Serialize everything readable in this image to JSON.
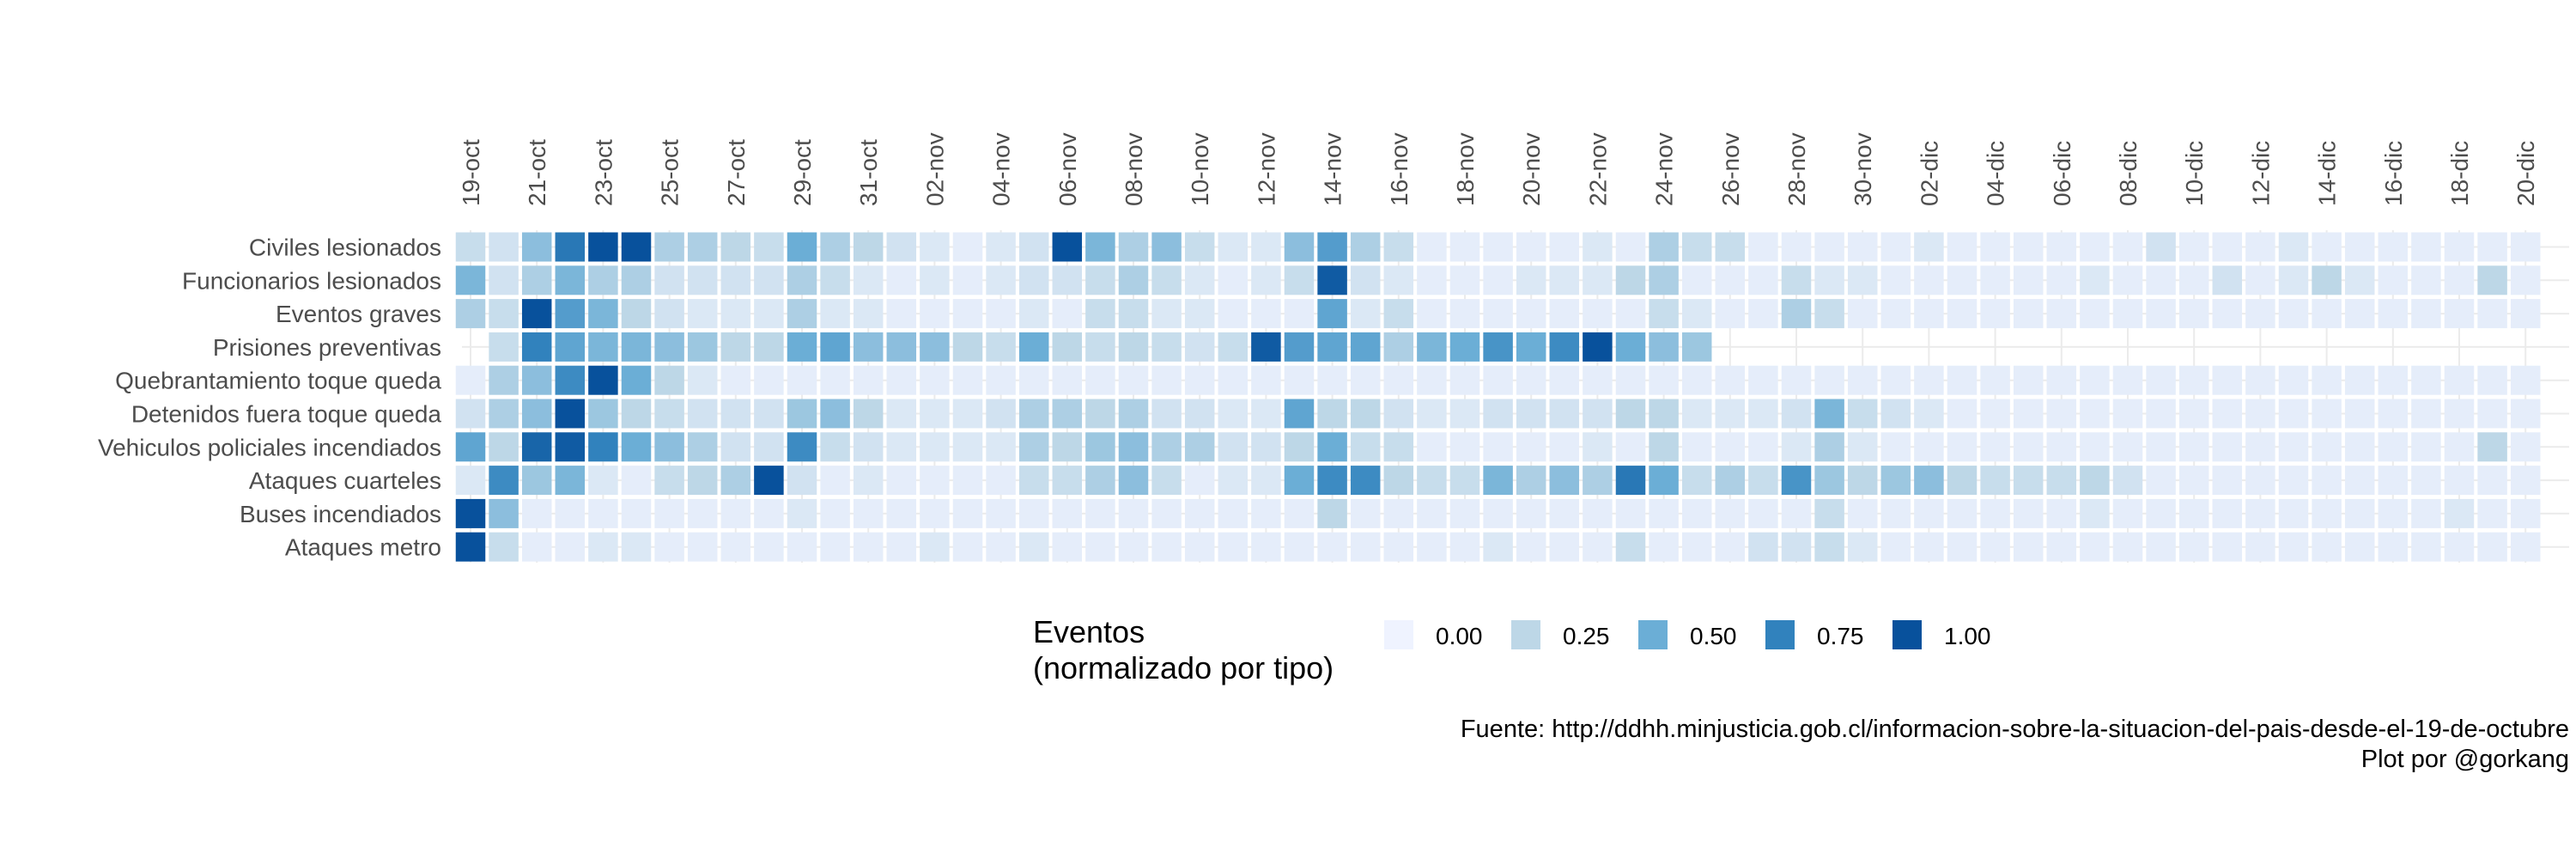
{
  "chart_data": {
    "type": "heatmap",
    "title": "",
    "xlabel": "",
    "ylabel": "",
    "x_tick_labels": [
      "19-oct",
      "21-oct",
      "23-oct",
      "25-oct",
      "27-oct",
      "29-oct",
      "31-oct",
      "02-nov",
      "04-nov",
      "06-nov",
      "08-nov",
      "10-nov",
      "12-nov",
      "14-nov",
      "16-nov",
      "18-nov",
      "20-nov",
      "22-nov",
      "24-nov",
      "26-nov",
      "28-nov",
      "30-nov",
      "02-dic",
      "04-dic",
      "06-dic",
      "08-dic",
      "10-dic",
      "12-dic",
      "14-dic",
      "16-dic",
      "18-dic",
      "20-dic"
    ],
    "n_days": 63,
    "rows": [
      "Civiles lesionados",
      "Funcionarios lesionados",
      "Eventos graves",
      "Prisiones preventivas",
      "Quebrantamiento toque queda",
      "Detenidos fuera toque queda",
      "Vehiculos policiales incendiados",
      "Ataques cuarteles",
      "Buses incendiados",
      "Ataques metro"
    ],
    "values": [
      [
        0.2,
        0.15,
        0.4,
        0.8,
        1.0,
        1.0,
        0.3,
        0.3,
        0.25,
        0.2,
        0.5,
        0.3,
        0.25,
        0.15,
        0.1,
        0.05,
        0.1,
        0.15,
        1.0,
        0.45,
        0.3,
        0.4,
        0.2,
        0.1,
        0.1,
        0.4,
        0.6,
        0.3,
        0.2,
        0.05,
        0.05,
        0.05,
        0.05,
        0.05,
        0.1,
        0.05,
        0.3,
        0.2,
        0.2,
        0.05,
        0.05,
        0.05,
        0.05,
        0.05,
        0.1,
        0.05,
        0.05,
        0.05,
        0.05,
        0.05,
        0.05,
        0.15,
        0.05,
        0.05,
        0.05,
        0.1,
        0.05,
        0.05,
        0.05,
        0.05,
        0.05,
        0.05,
        0.05
      ],
      [
        0.45,
        0.15,
        0.3,
        0.45,
        0.3,
        0.3,
        0.15,
        0.15,
        0.15,
        0.15,
        0.3,
        0.2,
        0.1,
        0.05,
        0.1,
        0.05,
        0.1,
        0.15,
        0.15,
        0.2,
        0.3,
        0.2,
        0.1,
        0.05,
        0.1,
        0.2,
        0.95,
        0.15,
        0.1,
        0.05,
        0.05,
        0.05,
        0.1,
        0.1,
        0.1,
        0.25,
        0.3,
        0.05,
        0.05,
        0.05,
        0.2,
        0.1,
        0.1,
        0.05,
        0.05,
        0.05,
        0.05,
        0.05,
        0.05,
        0.1,
        0.05,
        0.05,
        0.05,
        0.15,
        0.05,
        0.1,
        0.25,
        0.1,
        0.05,
        0.05,
        0.05,
        0.25,
        0.05
      ],
      [
        0.3,
        0.2,
        1.0,
        0.6,
        0.45,
        0.25,
        0.15,
        0.1,
        0.1,
        0.1,
        0.3,
        0.1,
        0.1,
        0.05,
        0.05,
        0.05,
        0.05,
        0.1,
        0.05,
        0.2,
        0.2,
        0.1,
        0.1,
        0.05,
        0.05,
        0.05,
        0.55,
        0.1,
        0.2,
        0.05,
        0.05,
        0.05,
        0.05,
        0.05,
        0.05,
        0.05,
        0.2,
        0.1,
        0.05,
        0.05,
        0.3,
        0.2,
        0.05,
        0.05,
        0.05,
        0.05,
        0.05,
        0.05,
        0.05,
        0.05,
        0.05,
        0.05,
        0.05,
        0.05,
        0.05,
        0.05,
        0.05,
        0.05,
        0.05,
        0.05,
        0.05,
        0.05,
        0.05
      ],
      [
        null,
        0.2,
        0.75,
        0.55,
        0.45,
        0.45,
        0.4,
        0.35,
        0.25,
        0.25,
        0.5,
        0.55,
        0.4,
        0.4,
        0.4,
        0.25,
        0.2,
        0.5,
        0.25,
        0.2,
        0.25,
        0.2,
        0.15,
        0.2,
        0.95,
        0.6,
        0.55,
        0.55,
        0.3,
        0.45,
        0.5,
        0.65,
        0.5,
        0.7,
        1.0,
        0.5,
        0.4,
        0.35,
        null,
        null,
        null,
        null,
        null,
        null,
        null,
        null,
        null,
        null,
        null,
        null,
        null,
        null,
        null,
        null,
        null,
        null,
        null,
        null,
        null,
        null,
        null,
        null,
        null
      ],
      [
        0.05,
        0.3,
        0.4,
        0.7,
        1.0,
        0.5,
        0.25,
        0.1,
        0.05,
        0.05,
        0.05,
        0.05,
        0.05,
        0.05,
        0.05,
        0.05,
        0.05,
        0.05,
        0.05,
        0.05,
        0.05,
        0.05,
        0.05,
        0.05,
        0.05,
        0.05,
        0.05,
        0.05,
        0.05,
        0.05,
        0.05,
        0.05,
        0.05,
        0.05,
        0.05,
        0.05,
        0.05,
        0.05,
        0.05,
        0.05,
        0.05,
        0.05,
        0.05,
        0.05,
        0.05,
        0.05,
        0.05,
        0.05,
        0.05,
        0.05,
        0.05,
        0.05,
        0.05,
        0.05,
        0.05,
        0.05,
        0.05,
        0.05,
        0.05,
        0.05,
        0.05,
        0.05,
        0.05
      ],
      [
        0.15,
        0.3,
        0.4,
        1.0,
        0.35,
        0.25,
        0.2,
        0.15,
        0.15,
        0.15,
        0.35,
        0.4,
        0.25,
        0.1,
        0.1,
        0.1,
        0.15,
        0.3,
        0.3,
        0.25,
        0.3,
        0.15,
        0.15,
        0.1,
        0.1,
        0.55,
        0.25,
        0.25,
        0.15,
        0.1,
        0.1,
        0.15,
        0.15,
        0.15,
        0.15,
        0.25,
        0.25,
        0.1,
        0.1,
        0.1,
        0.15,
        0.45,
        0.2,
        0.15,
        0.1,
        0.05,
        0.05,
        0.05,
        0.05,
        0.05,
        0.05,
        0.05,
        0.05,
        0.05,
        0.05,
        0.05,
        0.05,
        0.05,
        0.05,
        0.05,
        0.05,
        0.05,
        0.05
      ],
      [
        0.55,
        0.25,
        0.9,
        0.95,
        0.75,
        0.5,
        0.4,
        0.3,
        0.15,
        0.15,
        0.7,
        0.2,
        0.15,
        0.1,
        0.1,
        0.1,
        0.1,
        0.3,
        0.25,
        0.35,
        0.4,
        0.3,
        0.3,
        0.15,
        0.15,
        0.25,
        0.5,
        0.2,
        0.2,
        0.05,
        0.05,
        0.05,
        0.05,
        0.05,
        0.1,
        0.05,
        0.25,
        0.05,
        0.05,
        0.05,
        0.1,
        0.3,
        0.1,
        0.05,
        0.05,
        0.05,
        0.05,
        0.05,
        0.05,
        0.05,
        0.05,
        0.05,
        0.05,
        0.05,
        0.05,
        0.05,
        0.05,
        0.05,
        0.05,
        0.05,
        0.05,
        0.25,
        0.05
      ],
      [
        0.1,
        0.7,
        0.35,
        0.45,
        0.1,
        0.05,
        0.2,
        0.25,
        0.3,
        1.0,
        0.15,
        0.05,
        0.1,
        0.05,
        0.05,
        0.05,
        0.05,
        0.2,
        0.2,
        0.3,
        0.4,
        0.2,
        0.05,
        0.1,
        0.1,
        0.5,
        0.7,
        0.7,
        0.25,
        0.2,
        0.2,
        0.45,
        0.3,
        0.4,
        0.3,
        0.8,
        0.5,
        0.2,
        0.3,
        0.2,
        0.65,
        0.35,
        0.25,
        0.35,
        0.4,
        0.25,
        0.2,
        0.2,
        0.2,
        0.25,
        0.15,
        0.05,
        0.05,
        0.05,
        0.05,
        0.05,
        0.05,
        0.05,
        0.05,
        0.05,
        0.05,
        0.05,
        0.05
      ],
      [
        1.0,
        0.4,
        0.05,
        0.05,
        0.05,
        0.05,
        0.05,
        0.05,
        0.05,
        0.05,
        0.1,
        0.05,
        0.05,
        0.05,
        0.05,
        0.05,
        0.05,
        0.05,
        0.05,
        0.05,
        0.05,
        0.05,
        0.05,
        0.05,
        0.05,
        0.05,
        0.25,
        0.05,
        0.05,
        0.05,
        0.05,
        0.05,
        0.05,
        0.05,
        0.05,
        0.05,
        0.05,
        0.05,
        0.05,
        0.05,
        0.05,
        0.2,
        0.05,
        0.05,
        0.05,
        0.05,
        0.05,
        0.05,
        0.05,
        0.1,
        0.05,
        0.05,
        0.05,
        0.05,
        0.05,
        0.05,
        0.05,
        0.05,
        0.05,
        0.05,
        0.1,
        0.05,
        0.05
      ],
      [
        1.0,
        0.2,
        0.05,
        0.05,
        0.1,
        0.1,
        0.05,
        0.05,
        0.05,
        0.05,
        0.05,
        0.05,
        0.05,
        0.05,
        0.1,
        0.05,
        0.05,
        0.1,
        0.05,
        0.05,
        0.05,
        0.05,
        0.05,
        0.05,
        0.05,
        0.05,
        0.05,
        0.05,
        0.05,
        0.05,
        0.05,
        0.1,
        0.05,
        0.05,
        0.05,
        0.2,
        0.05,
        0.05,
        0.05,
        0.15,
        0.15,
        0.2,
        0.1,
        0.05,
        0.05,
        0.05,
        0.05,
        0.05,
        0.05,
        0.05,
        0.05,
        0.05,
        0.05,
        0.05,
        0.05,
        0.05,
        0.05,
        0.05,
        0.05,
        0.05,
        0.05,
        0.05,
        0.05
      ]
    ],
    "colorscale": {
      "min": 0,
      "max": 1,
      "colors": [
        "#eff3ff",
        "#bdd7e7",
        "#6baed6",
        "#3182bd",
        "#08519c"
      ]
    },
    "legend": {
      "title_line1": "Eventos",
      "title_line2": "(normalizado por tipo)",
      "labels": [
        "0.00",
        "0.25",
        "0.50",
        "0.75",
        "1.00"
      ],
      "values": [
        0,
        0.25,
        0.5,
        0.75,
        1.0
      ],
      "colors": [
        "#eff3ff",
        "#bdd7e7",
        "#6baed6",
        "#3182bd",
        "#08519c"
      ],
      "placement": "bottom"
    },
    "grid": true
  },
  "caption": {
    "source": "Fuente: http://ddhh.minjusticia.gob.cl/informacion-sobre-la-situacion-del-pais-desde-el-19-de-octubre",
    "author": "Plot por @gorkang"
  }
}
